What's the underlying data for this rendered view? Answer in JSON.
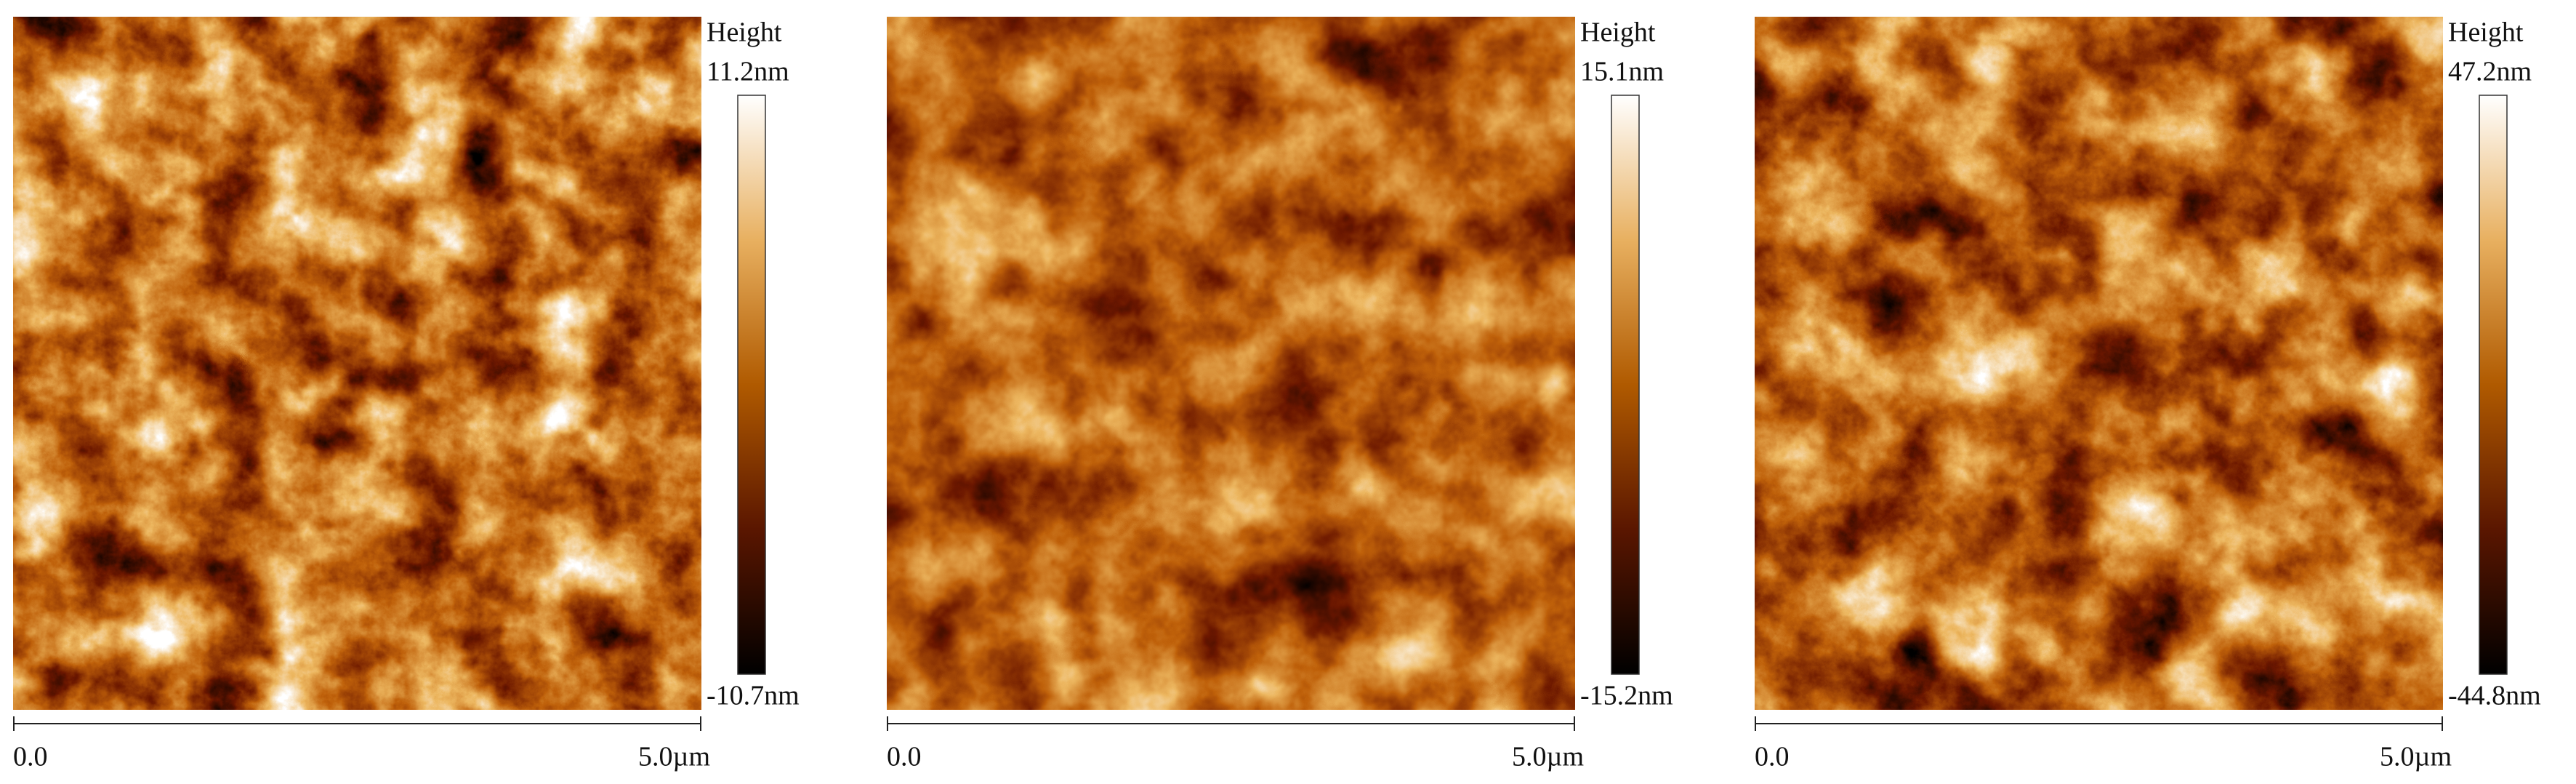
{
  "panels": [
    {
      "colorbar_title": "Height",
      "max_label": "11.2nm",
      "min_label": "-10.7nm",
      "scale_start": "0.0",
      "scale_end": "5.0µm"
    },
    {
      "colorbar_title": "Height",
      "max_label": "15.1nm",
      "min_label": "-15.2nm",
      "scale_start": "0.0",
      "scale_end": "5.0µm"
    },
    {
      "colorbar_title": "Height",
      "max_label": "47.2nm",
      "min_label": "-44.8nm",
      "scale_start": "0.0",
      "scale_end": "5.0µm"
    }
  ]
}
